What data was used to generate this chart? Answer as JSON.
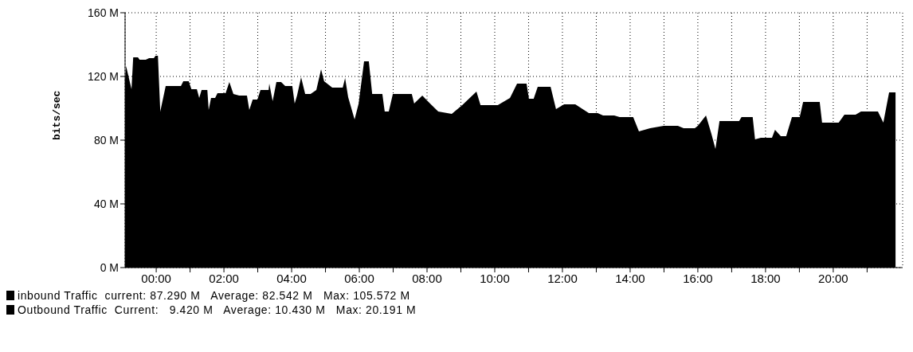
{
  "chart_data": {
    "type": "area",
    "ylabel": "bits/sec",
    "x": [
      -0.92,
      -0.89,
      -0.73,
      -0.68,
      -0.54,
      -0.49,
      -0.31,
      -0.21,
      -0.07,
      -0.02,
      0.05,
      0.12,
      0.28,
      0.73,
      0.8,
      0.96,
      1.04,
      1.2,
      1.27,
      1.34,
      1.51,
      1.55,
      1.62,
      1.74,
      1.81,
      2.05,
      2.16,
      2.28,
      2.45,
      2.68,
      2.75,
      2.85,
      2.99,
      3.08,
      3.32,
      3.34,
      3.44,
      3.55,
      3.69,
      3.81,
      4.02,
      4.09,
      4.16,
      4.28,
      4.4,
      4.56,
      4.73,
      4.87,
      4.96,
      5.2,
      5.51,
      5.58,
      5.67,
      5.86,
      5.98,
      6.14,
      6.28,
      6.38,
      6.68,
      6.75,
      6.87,
      6.99,
      7.55,
      7.62,
      7.86,
      8.09,
      8.33,
      8.73,
      9.04,
      9.46,
      9.58,
      10.09,
      10.45,
      10.66,
      10.94,
      11.01,
      11.15,
      11.27,
      11.65,
      11.81,
      12.05,
      12.38,
      12.78,
      13.04,
      13.2,
      13.53,
      13.69,
      14.09,
      14.26,
      14.59,
      14.99,
      15.41,
      15.58,
      15.91,
      16.0,
      16.24,
      16.4,
      16.52,
      16.64,
      17.22,
      17.29,
      17.62,
      17.69,
      17.86,
      18.19,
      18.28,
      18.45,
      18.61,
      18.78,
      19.01,
      19.11,
      19.6,
      19.67,
      20.16,
      20.33,
      20.66,
      20.82,
      21.32,
      21.48,
      21.65,
      21.84
    ],
    "series": [
      {
        "name": "inbound Traffic",
        "color": "#000000",
        "values": [
          118,
          126.5,
          112,
          132,
          132,
          130.5,
          130.5,
          131.5,
          131.5,
          133,
          133,
          98,
          114,
          114,
          117,
          117,
          112,
          112,
          106.5,
          111.5,
          111.5,
          99,
          106.5,
          106.5,
          109.5,
          109.5,
          116.5,
          109,
          108,
          108,
          99,
          105.5,
          105.5,
          111.5,
          111.5,
          115.5,
          104.5,
          116.5,
          116.5,
          114,
          114,
          103,
          108,
          119.5,
          109,
          109,
          111.5,
          124.5,
          117,
          113,
          113,
          119,
          107,
          93,
          103,
          129.5,
          129.5,
          109,
          109,
          98,
          98,
          109,
          109,
          103,
          108,
          103,
          98,
          96.5,
          102,
          110.5,
          102,
          102,
          106.5,
          115.5,
          115.5,
          106,
          106,
          113.5,
          113.5,
          99.5,
          102.5,
          102.5,
          97,
          97,
          95.5,
          95.5,
          94.5,
          94.5,
          85.5,
          87.5,
          89,
          89,
          87.5,
          87.5,
          89,
          95.5,
          84,
          74.5,
          92,
          92,
          94.5,
          94.5,
          80.5,
          81.5,
          81.5,
          86.5,
          82.5,
          82.5,
          94.5,
          94.5,
          104,
          104,
          91,
          91,
          96,
          96,
          98,
          98,
          91,
          110,
          110
        ]
      },
      {
        "name": "Outbound Traffic",
        "color": "#000000",
        "values": [
          null,
          null,
          null,
          null,
          null,
          null,
          null,
          null,
          null,
          null,
          null,
          null,
          null,
          null,
          null,
          null,
          null,
          null,
          null,
          null,
          null,
          null,
          null,
          null,
          null,
          null,
          null,
          null,
          null,
          null,
          null,
          null,
          null,
          null,
          null,
          null,
          null,
          null,
          null,
          null,
          null,
          null,
          null,
          null,
          null,
          null,
          null,
          null,
          null,
          null,
          null,
          null,
          null,
          null,
          null,
          null,
          null,
          null,
          null,
          null,
          null,
          null,
          null,
          null,
          null,
          null,
          null,
          null,
          null,
          null,
          null,
          null,
          null,
          null,
          null,
          null,
          null,
          null,
          null,
          null,
          null,
          null,
          null,
          null,
          null,
          null,
          null,
          null,
          null,
          null,
          null,
          null,
          null,
          null,
          null,
          null,
          null,
          null,
          null,
          null,
          null,
          null,
          null,
          null,
          null,
          null,
          null,
          null,
          null,
          null,
          null,
          null,
          null,
          null,
          null,
          null,
          null,
          null,
          null,
          null,
          null
        ]
      }
    ],
    "annotations": [
      "current: 87.290 M   Average: 82.542 M   Max: 105.572 M",
      "Current:   9.420 M   Average: 10.430 M   Max: 20.191 M"
    ],
    "xlim": [
      -0.92,
      22.05
    ],
    "xticks": [
      {
        "value": 0,
        "label": "00:00"
      },
      {
        "value": 1,
        "label": null
      },
      {
        "value": 2,
        "label": "02:00"
      },
      {
        "value": 3,
        "label": null
      },
      {
        "value": 4,
        "label": "04:00"
      },
      {
        "value": 5,
        "label": null
      },
      {
        "value": 6,
        "label": "06:00"
      },
      {
        "value": 7,
        "label": null
      },
      {
        "value": 8,
        "label": "08:00"
      },
      {
        "value": 9,
        "label": null
      },
      {
        "value": 10,
        "label": "10:00"
      },
      {
        "value": 11,
        "label": null
      },
      {
        "value": 12,
        "label": "12:00"
      },
      {
        "value": 13,
        "label": null
      },
      {
        "value": 14,
        "label": "14:00"
      },
      {
        "value": 15,
        "label": null
      },
      {
        "value": 16,
        "label": "16:00"
      },
      {
        "value": 17,
        "label": null
      },
      {
        "value": 18,
        "label": "18:00"
      },
      {
        "value": 19,
        "label": null
      },
      {
        "value": 20,
        "label": "20:00"
      },
      {
        "value": 21,
        "label": null
      }
    ],
    "ylim": [
      0,
      160
    ],
    "yticks": [
      {
        "value": 0,
        "label": "0 M"
      },
      {
        "value": 40,
        "label": "40 M"
      },
      {
        "value": 80,
        "label": "80 M"
      },
      {
        "value": 120,
        "label": "120 M"
      },
      {
        "value": 160,
        "label": "160 M"
      }
    ],
    "grid": true,
    "legend": "bottom left"
  }
}
